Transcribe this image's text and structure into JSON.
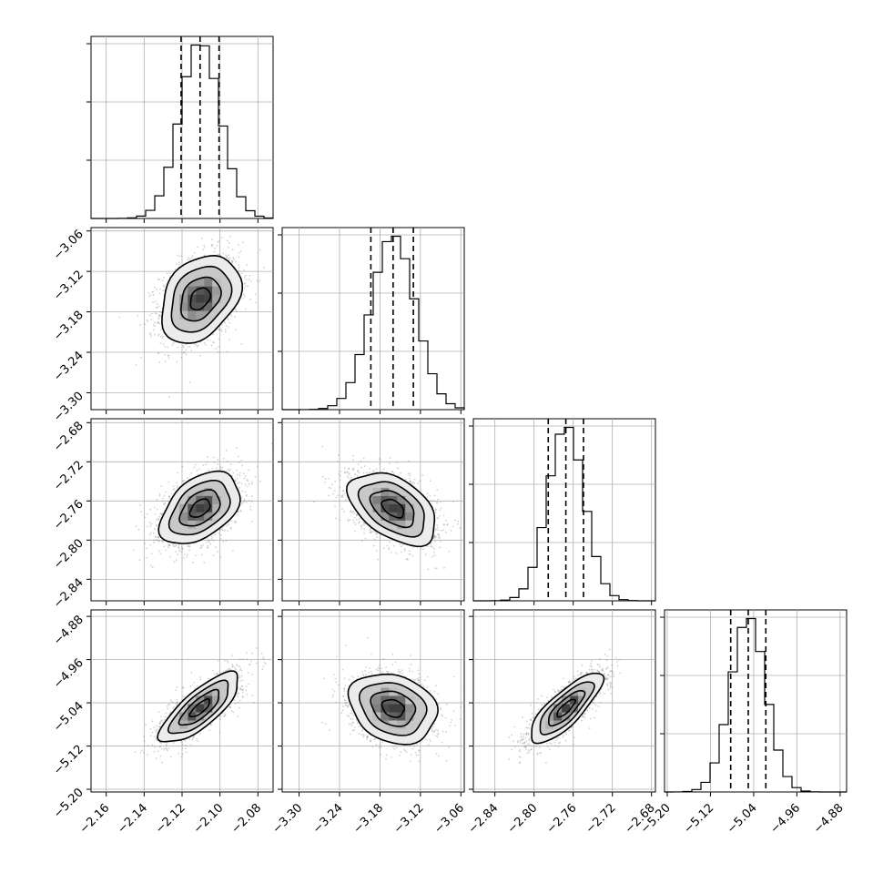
{
  "chart_data": {
    "type": "corner",
    "n_params": 4,
    "quantiles": [
      0.16,
      0.5,
      0.84
    ],
    "grid": true,
    "colors": {
      "line": "#000000",
      "grid": "#b0b0b0",
      "points": "#7f7f7f",
      "background": "#ffffff"
    },
    "params": [
      {
        "index": 0,
        "mean": -2.1105,
        "sigma": 0.0105,
        "range": [
          -2.168,
          -2.072
        ],
        "ticks": [
          -2.16,
          -2.14,
          -2.12,
          -2.1,
          -2.08
        ],
        "tick_labels": [
          "−2.16",
          "−2.14",
          "−2.12",
          "−2.10",
          "−2.08"
        ],
        "quantile_values": [
          -2.1205,
          -2.1105,
          -2.1005
        ]
      },
      {
        "index": 1,
        "mean": -3.1605,
        "sigma": 0.0325,
        "range": [
          -3.325,
          -3.055
        ],
        "ticks": [
          -3.3,
          -3.24,
          -3.18,
          -3.12,
          -3.06
        ],
        "tick_labels": [
          "−3.30",
          "−3.24",
          "−3.18",
          "−3.12",
          "−3.06"
        ],
        "quantile_values": [
          -3.1935,
          -3.1605,
          -3.1305
        ]
      },
      {
        "index": 2,
        "mean": -2.7675,
        "sigma": 0.0185,
        "range": [
          -2.862,
          -2.676
        ],
        "ticks": [
          -2.84,
          -2.8,
          -2.76,
          -2.72,
          -2.68
        ],
        "tick_labels": [
          "−2.84",
          "−2.80",
          "−2.76",
          "−2.72",
          "−2.68"
        ],
        "quantile_values": [
          -2.7855,
          -2.7675,
          -2.7495
        ]
      },
      {
        "index": 3,
        "mean": -5.05,
        "sigma": 0.0325,
        "range": [
          -5.205,
          -4.868
        ],
        "ticks": [
          -5.2,
          -5.12,
          -5.04,
          -4.96,
          -4.88
        ],
        "tick_labels": [
          "−5.20",
          "−5.12",
          "−5.04",
          "−4.96",
          "−4.88"
        ],
        "quantile_values": [
          -5.0825,
          -5.05,
          -5.0175
        ]
      }
    ],
    "correlations": [
      {
        "row": 1,
        "col": 0,
        "rho": 0.32
      },
      {
        "row": 2,
        "col": 0,
        "rho": 0.44
      },
      {
        "row": 2,
        "col": 1,
        "rho": -0.46
      },
      {
        "row": 3,
        "col": 0,
        "rho": 0.78
      },
      {
        "row": 3,
        "col": 1,
        "rho": -0.22
      },
      {
        "row": 3,
        "col": 2,
        "rho": 0.8
      }
    ],
    "histogram_bins": 20,
    "contour_levels": [
      0.118,
      0.393,
      0.675,
      0.864
    ]
  }
}
